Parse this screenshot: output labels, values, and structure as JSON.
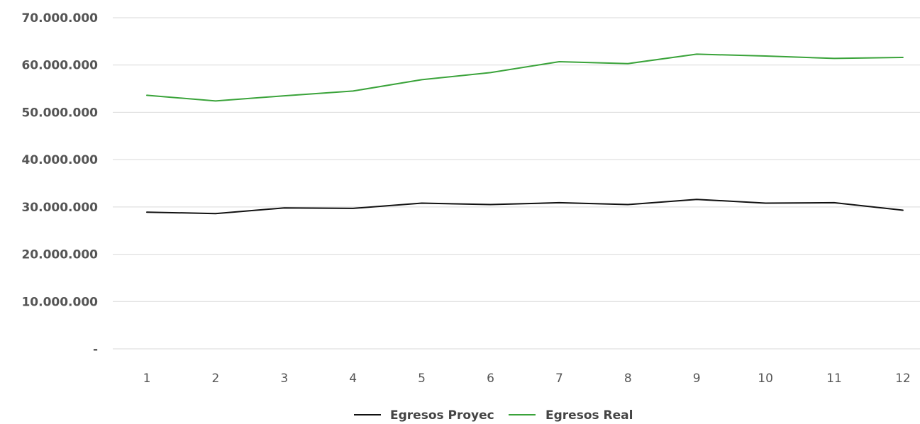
{
  "chart_data": {
    "type": "line",
    "title": "",
    "xlabel": "",
    "ylabel": "",
    "x": [
      1,
      2,
      3,
      4,
      5,
      6,
      7,
      8,
      9,
      10,
      11,
      12
    ],
    "ylim": [
      0,
      70000000
    ],
    "y_ticks": [
      {
        "value": 0,
        "label": "-"
      },
      {
        "value": 10000000,
        "label": "10.000.000"
      },
      {
        "value": 20000000,
        "label": "20.000.000"
      },
      {
        "value": 30000000,
        "label": "30.000.000"
      },
      {
        "value": 40000000,
        "label": "40.000.000"
      },
      {
        "value": 50000000,
        "label": "50.000.000"
      },
      {
        "value": 60000000,
        "label": "60.000.000"
      },
      {
        "value": 70000000,
        "label": "70.000.000"
      }
    ],
    "grid": true,
    "legend_position": "bottom",
    "series": [
      {
        "name": "Egresos Proyec",
        "color": "#111111",
        "values": [
          28900000,
          28600000,
          29800000,
          29700000,
          30800000,
          30500000,
          30900000,
          30500000,
          31600000,
          30800000,
          30900000,
          29300000
        ]
      },
      {
        "name": "Egresos Real",
        "color": "#3aa33a",
        "values": [
          53600000,
          52400000,
          53500000,
          54500000,
          56900000,
          58400000,
          60700000,
          60300000,
          62300000,
          61900000,
          61400000,
          61600000
        ]
      }
    ]
  }
}
